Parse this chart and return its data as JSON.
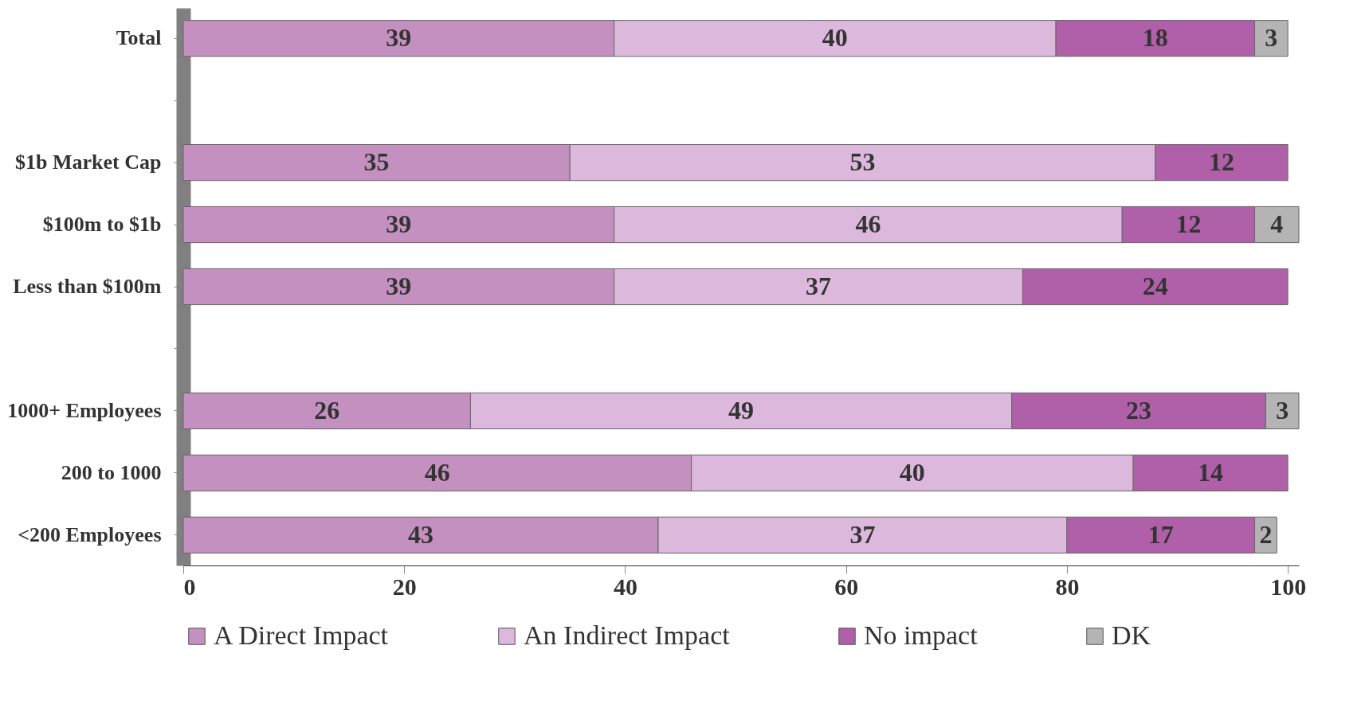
{
  "chart_data": {
    "type": "bar",
    "orientation": "horizontal",
    "stacked": true,
    "data_labels": true,
    "legend": "bottom",
    "grid": false,
    "categories": [
      "Total",
      null,
      "$1b Market Cap",
      "$100m to $1b",
      "Less than $100m",
      null,
      "1000+ Employees",
      "200 to 1000",
      "<200 Employees"
    ],
    "xlim": [
      0,
      101
    ],
    "xticks": [
      0,
      20,
      40,
      60,
      80,
      100
    ],
    "series": [
      {
        "name": "A Direct Impact",
        "color": "#c490c0",
        "values": [
          39,
          null,
          35,
          39,
          39,
          null,
          26,
          46,
          43
        ]
      },
      {
        "name": "An Indirect Impact",
        "color": "#dcb8dc",
        "values": [
          40,
          null,
          53,
          46,
          37,
          null,
          49,
          40,
          37
        ]
      },
      {
        "name": "No impact",
        "color": "#b060a8",
        "values": [
          18,
          null,
          12,
          12,
          24,
          null,
          23,
          14,
          17
        ]
      },
      {
        "name": "DK",
        "color": "#b4b4b4",
        "values": [
          3,
          null,
          null,
          4,
          null,
          null,
          3,
          null,
          2
        ]
      }
    ]
  }
}
